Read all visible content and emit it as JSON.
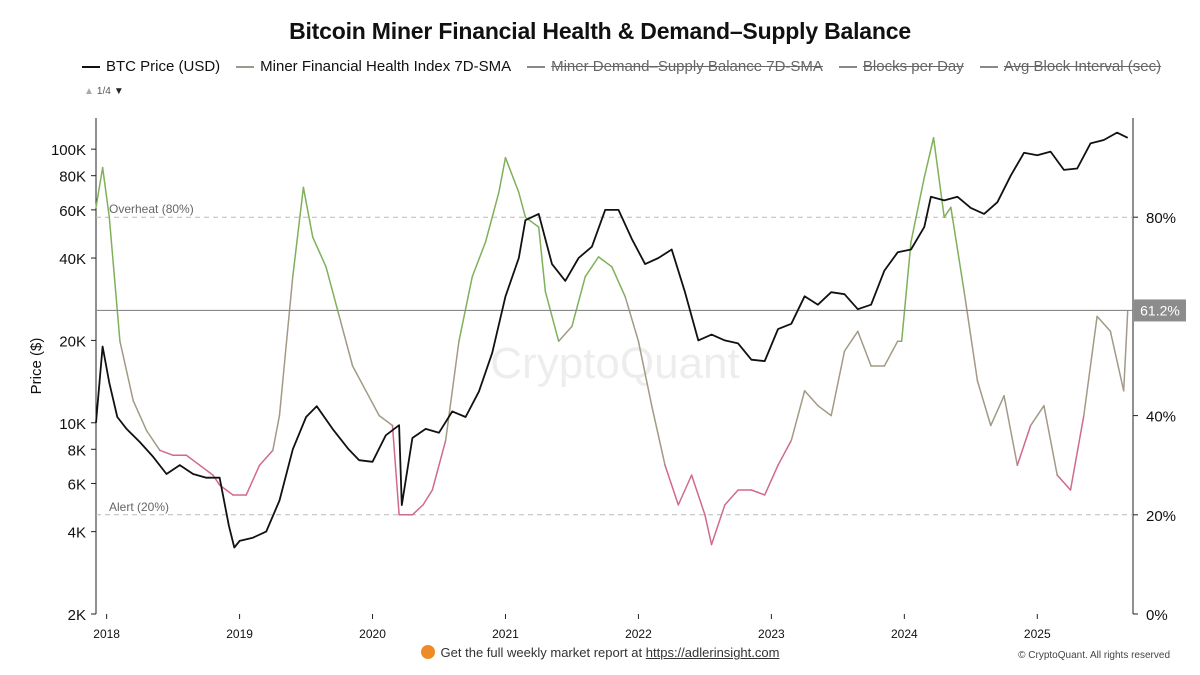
{
  "title": "Bitcoin Miner Financial Health & Demand–Supply Balance",
  "legend": [
    {
      "label": "BTC Price (USD)",
      "color": "#111111",
      "active": true
    },
    {
      "label": "Miner Financial Health Index 7D-SMA",
      "color": "#9a9a88",
      "active": true
    },
    {
      "label": "Miner Demand–Supply Balance 7D-SMA",
      "color": "#888888",
      "active": false
    },
    {
      "label": "Blocks per Day",
      "color": "#888888",
      "active": false
    },
    {
      "label": "Avg Block Interval (sec)",
      "color": "#888888",
      "active": false
    }
  ],
  "pager": {
    "text": "1/4"
  },
  "footer": {
    "prefix": "Get the full weekly market report at",
    "link": "https://adlerinsight.com"
  },
  "copyright": "© CryptoQuant. All rights reserved",
  "watermark": "CryptoQuant",
  "colors": {
    "price": "#111111",
    "index_high": "#7fb05a",
    "index_mid": "#a39a86",
    "index_low": "#d06a8a",
    "reference": "#8a8a8a"
  },
  "chart_data": {
    "type": "line",
    "title": "Bitcoin Miner Financial Health & Demand–Supply Balance",
    "xlabel": "",
    "ylabel": "Price ($)",
    "x_ticks": [
      "2018",
      "2019",
      "2020",
      "2021",
      "2022",
      "2023",
      "2024",
      "2025"
    ],
    "y_left": {
      "scale": "log",
      "range": [
        2000,
        130000
      ],
      "ticks": [
        {
          "v": 2000,
          "label": "2K"
        },
        {
          "v": 4000,
          "label": "4K"
        },
        {
          "v": 6000,
          "label": "6K"
        },
        {
          "v": 8000,
          "label": "8K"
        },
        {
          "v": 10000,
          "label": "10K"
        },
        {
          "v": 20000,
          "label": "20K"
        },
        {
          "v": 40000,
          "label": "40K"
        },
        {
          "v": 60000,
          "label": "60K"
        },
        {
          "v": 80000,
          "label": "80K"
        },
        {
          "v": 100000,
          "label": "100K"
        }
      ]
    },
    "y_right": {
      "scale": "linear",
      "range": [
        0,
        100
      ],
      "ticks": [
        {
          "v": 0,
          "label": "0%"
        },
        {
          "v": 20,
          "label": "20%"
        },
        {
          "v": 40,
          "label": "40%"
        },
        {
          "v": 80,
          "label": "80%"
        }
      ]
    },
    "thresholds": [
      {
        "label": "Overheat (80%)",
        "value": 80
      },
      {
        "label": "Alert (20%)",
        "value": 20
      }
    ],
    "current": {
      "value": 61.2,
      "label": "61.2%"
    },
    "series": [
      {
        "name": "BTC Price (USD)",
        "axis": "left",
        "x": [
          2017.92,
          2017.97,
          2018.02,
          2018.08,
          2018.15,
          2018.25,
          2018.35,
          2018.45,
          2018.55,
          2018.65,
          2018.75,
          2018.85,
          2018.92,
          2018.96,
          2019.0,
          2019.1,
          2019.2,
          2019.3,
          2019.4,
          2019.5,
          2019.58,
          2019.7,
          2019.82,
          2019.9,
          2020.0,
          2020.1,
          2020.2,
          2020.22,
          2020.3,
          2020.4,
          2020.5,
          2020.6,
          2020.7,
          2020.8,
          2020.9,
          2021.0,
          2021.1,
          2021.15,
          2021.25,
          2021.35,
          2021.45,
          2021.55,
          2021.65,
          2021.75,
          2021.85,
          2021.95,
          2022.05,
          2022.15,
          2022.25,
          2022.35,
          2022.45,
          2022.55,
          2022.65,
          2022.75,
          2022.85,
          2022.95,
          2023.05,
          2023.15,
          2023.25,
          2023.35,
          2023.45,
          2023.55,
          2023.65,
          2023.75,
          2023.85,
          2023.95,
          2024.05,
          2024.15,
          2024.2,
          2024.3,
          2024.4,
          2024.5,
          2024.6,
          2024.7,
          2024.8,
          2024.9,
          2025.0,
          2025.1,
          2025.2,
          2025.3,
          2025.4,
          2025.5,
          2025.6,
          2025.68
        ],
        "values": [
          10000,
          19000,
          14000,
          10500,
          9500,
          8500,
          7500,
          6500,
          7000,
          6500,
          6300,
          6300,
          4200,
          3500,
          3700,
          3800,
          4000,
          5200,
          8000,
          10500,
          11500,
          9500,
          8000,
          7300,
          7200,
          9000,
          9800,
          5000,
          8800,
          9500,
          9200,
          11000,
          10500,
          13000,
          18000,
          29000,
          40000,
          55000,
          58000,
          38000,
          33000,
          40000,
          44000,
          60000,
          60000,
          47000,
          38000,
          40000,
          43000,
          30000,
          20000,
          21000,
          20000,
          19500,
          17000,
          16800,
          22000,
          23000,
          29000,
          27000,
          30000,
          29500,
          26000,
          27000,
          36000,
          42000,
          43000,
          52000,
          67000,
          65000,
          67000,
          61000,
          58000,
          64000,
          80000,
          97000,
          95000,
          98000,
          84000,
          85000,
          105000,
          108000,
          115000,
          110000
        ]
      },
      {
        "name": "Miner Financial Health Index 7D-SMA",
        "axis": "right",
        "x": [
          2017.92,
          2017.97,
          2018.02,
          2018.1,
          2018.2,
          2018.3,
          2018.4,
          2018.5,
          2018.6,
          2018.7,
          2018.8,
          2018.85,
          2018.9,
          2018.95,
          2019.05,
          2019.15,
          2019.25,
          2019.3,
          2019.4,
          2019.48,
          2019.55,
          2019.65,
          2019.75,
          2019.85,
          2019.95,
          2020.05,
          2020.15,
          2020.2,
          2020.3,
          2020.38,
          2020.45,
          2020.55,
          2020.65,
          2020.75,
          2020.85,
          2020.95,
          2021.0,
          2021.1,
          2021.15,
          2021.25,
          2021.3,
          2021.4,
          2021.5,
          2021.6,
          2021.7,
          2021.8,
          2021.9,
          2022.0,
          2022.1,
          2022.2,
          2022.3,
          2022.4,
          2022.5,
          2022.55,
          2022.65,
          2022.75,
          2022.85,
          2022.95,
          2023.05,
          2023.15,
          2023.25,
          2023.35,
          2023.45,
          2023.55,
          2023.65,
          2023.75,
          2023.85,
          2023.95,
          2023.98,
          2024.05,
          2024.15,
          2024.22,
          2024.3,
          2024.35,
          2024.45,
          2024.55,
          2024.65,
          2024.75,
          2024.85,
          2024.95,
          2025.05,
          2025.15,
          2025.25,
          2025.35,
          2025.45,
          2025.55,
          2025.65,
          2025.68
        ],
        "values": [
          82,
          90,
          80,
          55,
          43,
          37,
          33,
          32,
          32,
          30,
          28,
          26,
          25,
          24,
          24,
          30,
          33,
          40,
          68,
          86,
          76,
          70,
          60,
          50,
          45,
          40,
          38,
          20,
          20,
          22,
          25,
          35,
          55,
          68,
          75,
          85,
          92,
          85,
          80,
          78,
          65,
          55,
          58,
          68,
          72,
          70,
          64,
          55,
          42,
          30,
          22,
          28,
          20,
          14,
          22,
          25,
          25,
          24,
          30,
          35,
          45,
          42,
          40,
          53,
          57,
          50,
          50,
          55,
          55,
          75,
          88,
          96,
          80,
          82,
          65,
          47,
          38,
          44,
          30,
          38,
          42,
          28,
          25,
          40,
          60,
          57,
          45,
          61
        ]
      }
    ]
  }
}
